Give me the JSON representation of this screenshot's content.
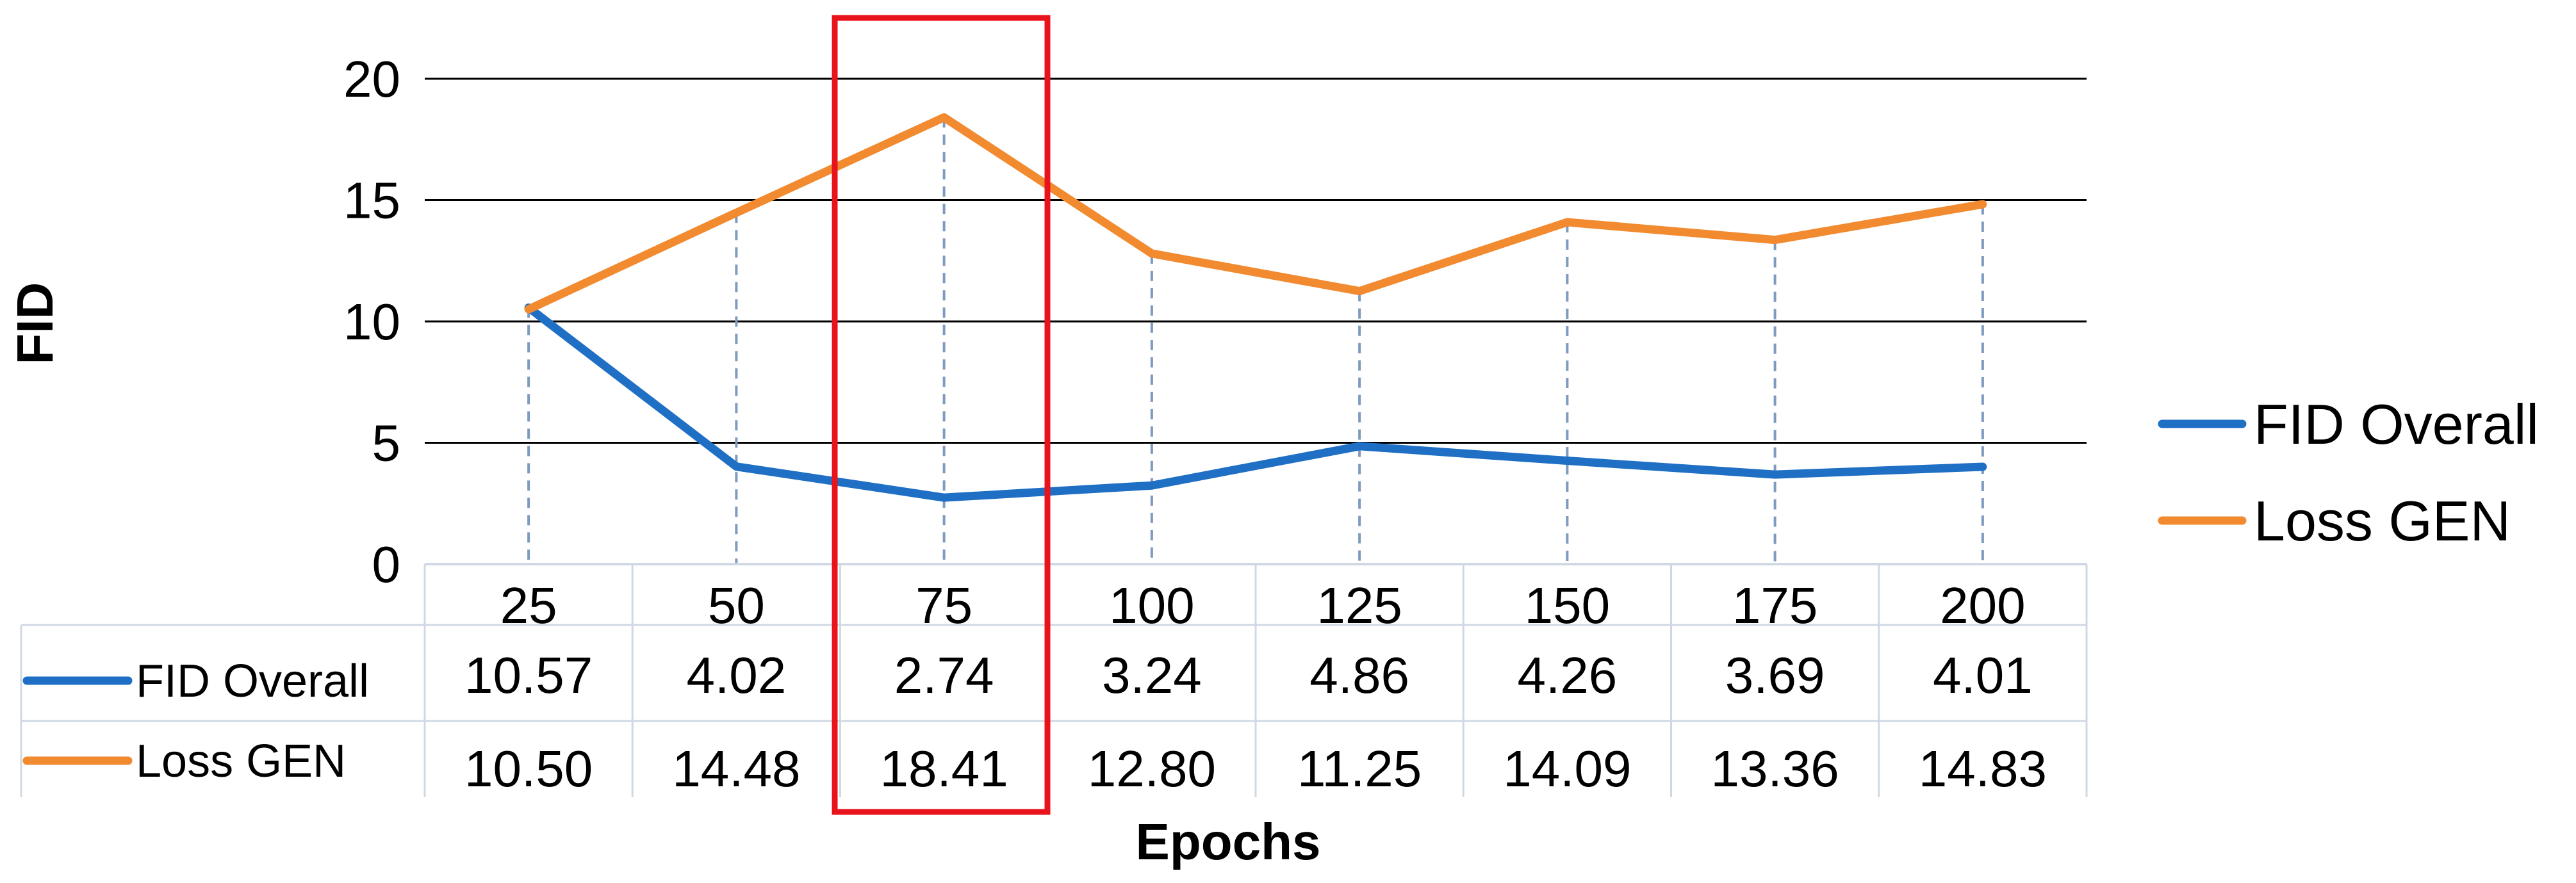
{
  "chart_data": {
    "type": "line",
    "title": "",
    "xlabel": "Epochs",
    "ylabel": "FID",
    "categories": [
      "25",
      "50",
      "75",
      "100",
      "125",
      "150",
      "175",
      "200"
    ],
    "ylim": [
      0,
      20
    ],
    "yticks": [
      0,
      5,
      10,
      15,
      20
    ],
    "grid": true,
    "legend_position": "right",
    "data_table": true,
    "highlighted_category": "75",
    "series": [
      {
        "name": "FID Overall",
        "color": "#1f6fc5",
        "values": [
          10.57,
          4.02,
          2.74,
          3.24,
          4.86,
          4.26,
          3.69,
          4.01
        ],
        "labels": [
          "10.57",
          "4.02",
          "2.74",
          "3.24",
          "4.86",
          "4.26",
          "3.69",
          "4.01"
        ]
      },
      {
        "name": "Loss GEN",
        "color": "#f28a30",
        "values": [
          10.5,
          14.48,
          18.41,
          12.8,
          11.25,
          14.09,
          13.36,
          14.83
        ],
        "labels": [
          "10.50",
          "14.48",
          "18.41",
          "12.80",
          "11.25",
          "14.09",
          "13.36",
          "14.83"
        ]
      }
    ],
    "highlight_color": "#e8131b"
  }
}
